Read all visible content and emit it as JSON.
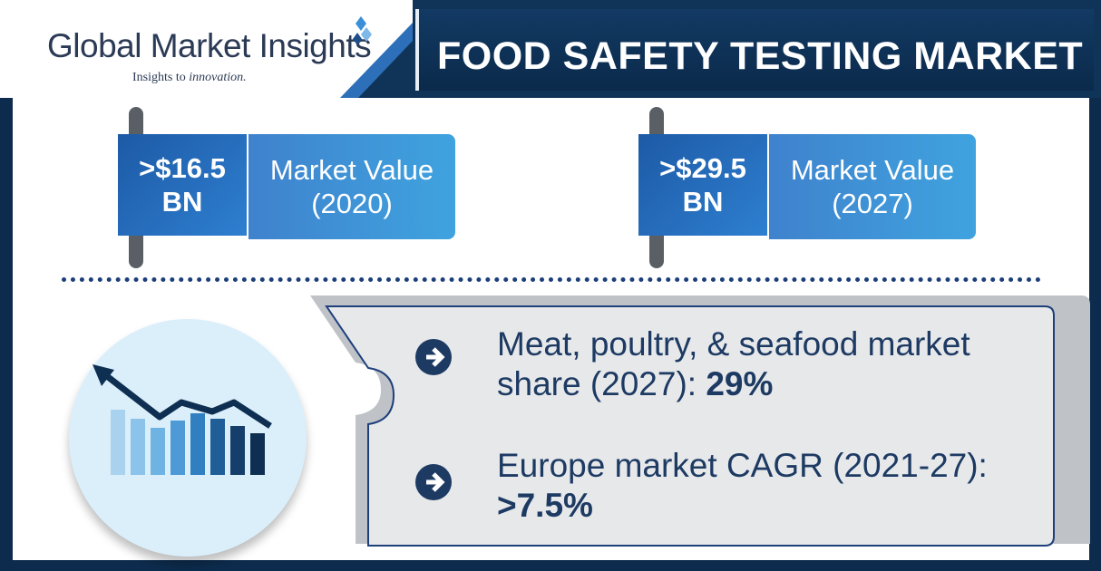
{
  "header": {
    "logo_title": "Global Market Insights",
    "logo_tagline_prefix": "Insights to ",
    "logo_tagline_em": "innovation.",
    "title": "FOOD SAFETY TESTING MARKET"
  },
  "stats": [
    {
      "value_line1": ">$16.5",
      "value_line2": "BN",
      "label_line1": "Market Value",
      "label_line2": "(2020)"
    },
    {
      "value_line1": ">$29.5",
      "value_line2": "BN",
      "label_line1": "Market Value",
      "label_line2": "(2027)"
    }
  ],
  "highlights": [
    {
      "text_line1": "Meat, poultry, & seafood market",
      "text_line2": "share (2027): ",
      "value": "29%"
    },
    {
      "text_line1": "Europe market CAGR (2021-27):",
      "text_line2": "",
      "value": ">7.5%"
    }
  ],
  "colors": {
    "navy": "#0f3458",
    "accent_blue": "#2e7fd0",
    "light_blue": "#3fa3df",
    "text_dark": "#1d3a63"
  },
  "icons": [
    "logo-diamond-icon",
    "growth-chart-icon",
    "arrow-right-icon"
  ]
}
